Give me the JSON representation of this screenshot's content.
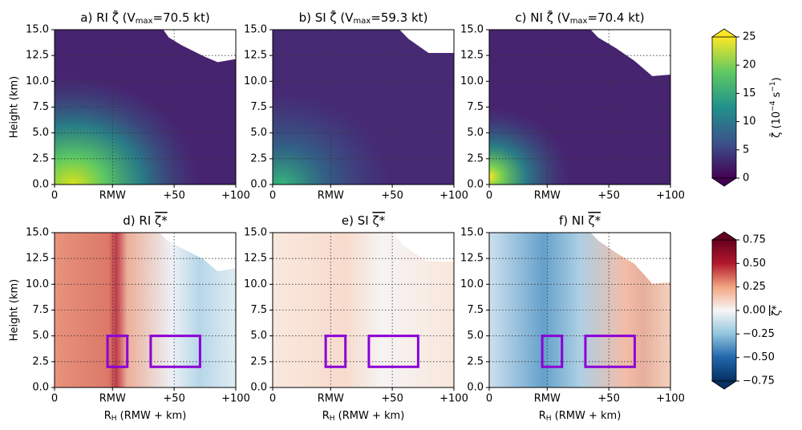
{
  "chart_data": {
    "type": "heatmap",
    "xlabel": {
      "main": "R",
      "sub": "H",
      "rest": " (RMW + km)"
    },
    "ylabel": "Height (km)",
    "xlim": [
      0,
      147
    ],
    "xticks": [
      0,
      {
        "value": 47,
        "label": "RMW"
      },
      {
        "value": 97,
        "label": "+50"
      },
      {
        "value": 147,
        "label": "+100"
      }
    ],
    "ylim": [
      0,
      15
    ],
    "yticks": [
      {
        "value": 0,
        "label": "0.0"
      },
      {
        "value": 2.5,
        "label": "2.5"
      },
      {
        "value": 5,
        "label": "5.0"
      },
      {
        "value": 7.5,
        "label": "7.5"
      },
      {
        "value": 10,
        "label": "10.0"
      },
      {
        "value": 12.5,
        "label": "12.5"
      },
      {
        "value": 15,
        "label": "15.0"
      }
    ],
    "grid": true,
    "panels": [
      {
        "title": {
          "text": "a) RI ζ̄ (V",
          "sub": "max",
          "rest": "=70.5 kt)"
        }
      },
      {
        "title": {
          "text": "b) SI ζ̄ (V",
          "sub": "max",
          "rest": "=59.3 kt)"
        }
      },
      {
        "title": {
          "text": "c) NI ζ̄ (V",
          "sub": "max",
          "rest": "=70.4 kt)"
        }
      },
      {
        "title": {
          "text": "d) RI ",
          "over": "ζ*"
        },
        "boxes": [
          {
            "x": [
              43,
              59
            ],
            "y": [
              2,
              5
            ]
          },
          {
            "x": [
              78,
              118
            ],
            "y": [
              2,
              5
            ]
          }
        ]
      },
      {
        "title": {
          "text": "e) SI ",
          "over": "ζ*"
        },
        "boxes": [
          {
            "x": [
              43,
              59
            ],
            "y": [
              2,
              5
            ]
          },
          {
            "x": [
              78,
              118
            ],
            "y": [
              2,
              5
            ]
          }
        ]
      },
      {
        "title": {
          "text": "f) NI ",
          "over": "ζ*"
        },
        "boxes": [
          {
            "x": [
              43,
              59
            ],
            "y": [
              2,
              5
            ]
          },
          {
            "x": [
              78,
              118
            ],
            "y": [
              2,
              5
            ]
          }
        ]
      }
    ],
    "box_color": "#8b00d6",
    "colorbars": [
      {
        "label": {
          "text": "ζ̄ (10",
          "sup": "−4",
          "mid": " s",
          "sup2": "−1",
          "rest": ")"
        },
        "lim": [
          0,
          25
        ],
        "ticks": [
          0,
          5,
          10,
          15,
          20,
          25
        ],
        "colors": [
          "#440154",
          "#3b528b",
          "#21918c",
          "#5ec962",
          "#fde725"
        ]
      },
      {
        "label": {
          "text": "",
          "over": "ζ*"
        },
        "lim": [
          -0.75,
          0.75
        ],
        "ticks": [
          {
            "value": -0.75,
            "label": "−0.75"
          },
          {
            "value": -0.5,
            "label": "−0.50"
          },
          {
            "value": -0.25,
            "label": "−0.25"
          },
          {
            "value": 0,
            "label": "0.00"
          },
          {
            "value": 0.25,
            "label": "0.25"
          },
          {
            "value": 0.5,
            "label": "0.50"
          },
          {
            "value": 0.75,
            "label": "0.75"
          }
        ],
        "colors": [
          "#053061",
          "#2166ac",
          "#92c5de",
          "#f7f7f7",
          "#f4a582",
          "#b2182b",
          "#67001f"
        ]
      }
    ]
  }
}
